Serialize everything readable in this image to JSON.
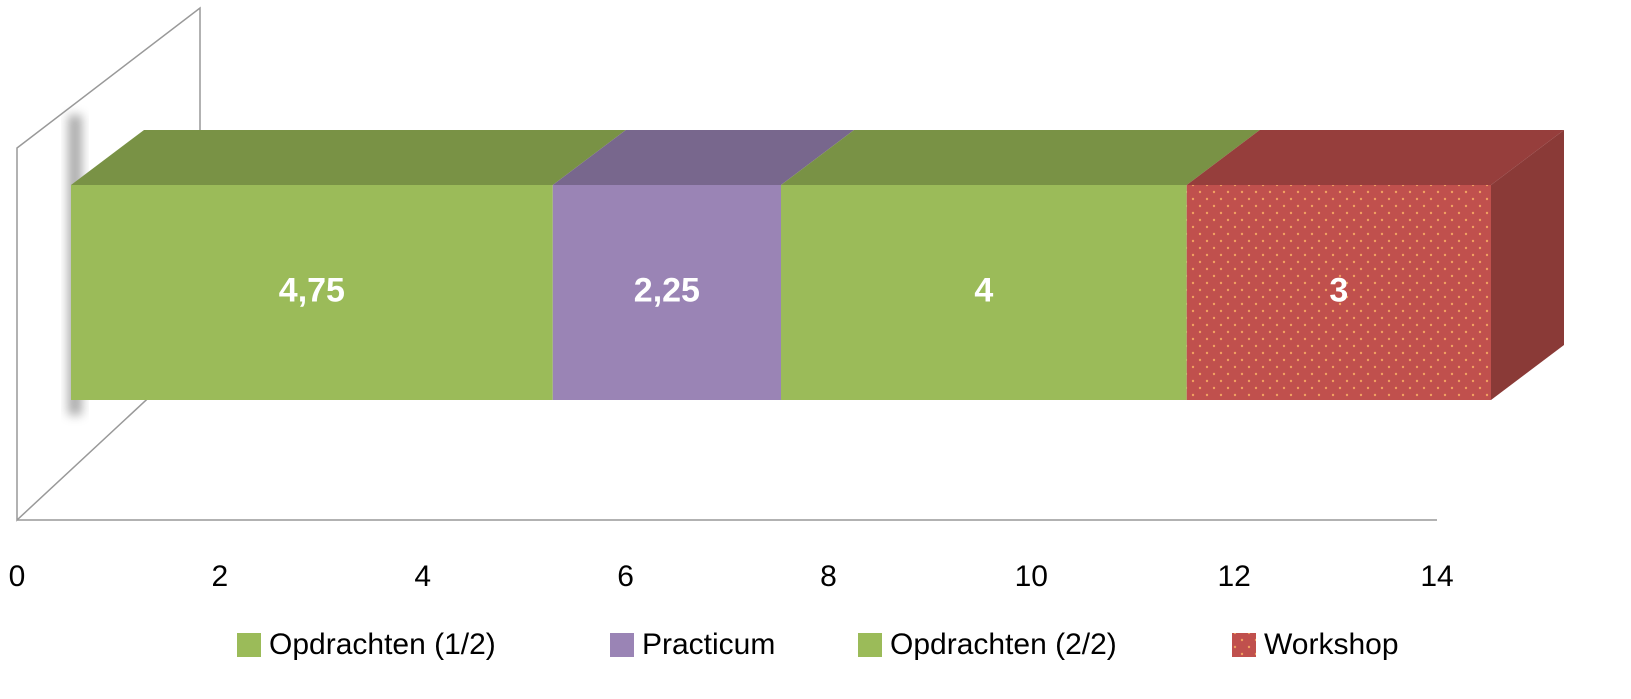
{
  "chart_data": {
    "type": "bar3d-stacked-horizontal",
    "categories": [
      null
    ],
    "series": [
      {
        "name": "Opdrachten (1/2)",
        "color": "#9bbb59",
        "values": [
          4.75
        ],
        "value_labels": [
          "4,75"
        ]
      },
      {
        "name": "Practicum",
        "color": "#9a84b5",
        "values": [
          2.25
        ],
        "value_labels": [
          "2,25"
        ]
      },
      {
        "name": "Opdrachten (2/2)",
        "color": "#9bbb59",
        "values": [
          4
        ]
      },
      {
        "name": "Workshop",
        "color": "#c0504d",
        "values": [
          3
        ],
        "pattern": "dots"
      }
    ],
    "xlim": [
      0,
      14
    ],
    "xticks": [
      0,
      2,
      4,
      6,
      8,
      10,
      12,
      14
    ],
    "legend": "bottom"
  }
}
